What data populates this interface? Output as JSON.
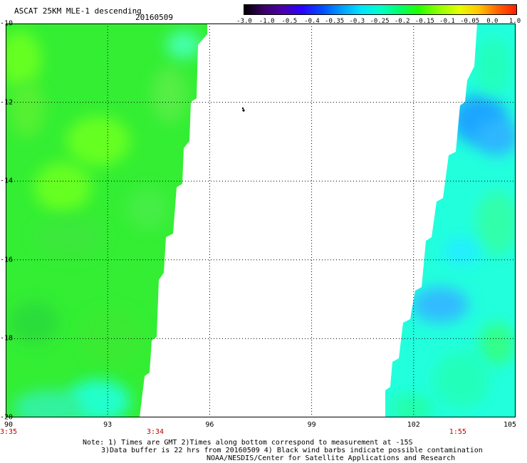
{
  "header": {
    "title": "ASCAT 25KM MLE-1 descending",
    "date": "20160509"
  },
  "colorbar": {
    "colors": [
      "#000000",
      "#3a0066",
      "#4b00a8",
      "#2a00ff",
      "#0050ff",
      "#00a0ff",
      "#00e4ff",
      "#00ffc8",
      "#00ff6c",
      "#22ff00",
      "#8cff00",
      "#e6ff00",
      "#ffc800",
      "#ff6400",
      "#ff1e00"
    ],
    "tick_labels": [
      "-3.0",
      "-1.0",
      "-0.5",
      "-0.4",
      "-0.35",
      "-0.3",
      "-0.25",
      "-0.2",
      "-0.15",
      "-0.1",
      "-0.05",
      "0.0",
      "1.0"
    ]
  },
  "map": {
    "lon_range": [
      90,
      105
    ],
    "lat_range": [
      -10,
      -20
    ],
    "lon_labels": [
      "90",
      "93",
      "96",
      "99",
      "102",
      "105"
    ],
    "lat_labels": [
      "-10",
      "-12",
      "-14",
      "-16",
      "-18",
      "-20"
    ],
    "time_labels": [
      {
        "text": "3:35",
        "lon": 90
      },
      {
        "text": "3:34",
        "lon": 94.4
      },
      {
        "text": "1:55",
        "lon": 103.3
      }
    ],
    "swath_colors": {
      "west_main": "#33ee33",
      "west_bright": "#66ff22",
      "west_cyan": "#22ffcc",
      "east_main": "#22ffdd",
      "east_blue": "#1fa6ff",
      "east_green": "#33ff88"
    }
  },
  "notes": {
    "line1": "Note: 1) Times are GMT 2)Times along bottom correspond to measurement at -15S",
    "line2": "3)Data buffer is 22 hrs from 20160509 4) Black wind barbs indicate possible contamination",
    "line3": "NOAA/NESDIS/Center for Satellite Applications and Research"
  }
}
